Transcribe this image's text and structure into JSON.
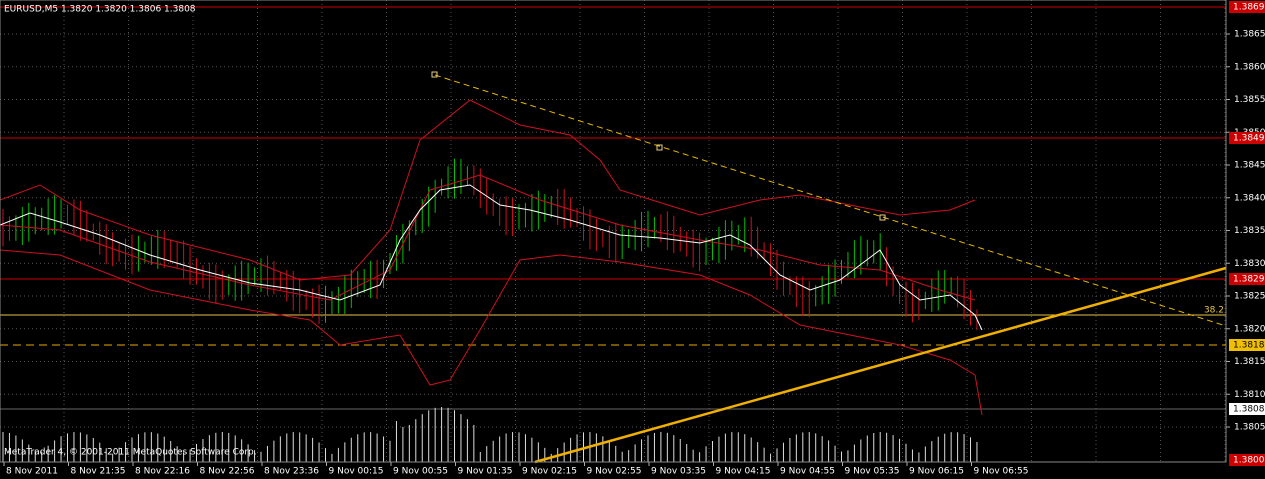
{
  "header": {
    "title": "EURUSD,M5  1.3820 1.3820 1.3806 1.3808"
  },
  "watermark": "MetaTrader 4, © 2001-2011 MetaQuotes Software Corp.",
  "price_axis": {
    "labels": [
      "1.3865",
      "1.3860",
      "1.3855",
      "1.3850",
      "1.3845",
      "1.3840",
      "1.3835",
      "1.3830",
      "1.3825",
      "1.3820",
      "1.3815",
      "1.3810",
      "1.3805"
    ]
  },
  "price_markers": [
    {
      "label": "1.3869"
    },
    {
      "label": "1.3849"
    },
    {
      "label": "1.3829"
    },
    {
      "label": "1.3818"
    },
    {
      "label": "1.3808"
    },
    {
      "label": "1.3800"
    }
  ],
  "level_label": "38.2",
  "time_axis": {
    "labels": [
      "8 Nov 2011",
      "8 Nov 21:35",
      "8 Nov 22:16",
      "8 Nov 22:56",
      "8 Nov 23:36",
      "9 Nov 00:15",
      "9 Nov 00:55",
      "9 Nov 01:35",
      "9 Nov 02:15",
      "9 Nov 02:55",
      "9 Nov 03:35",
      "9 Nov 04:15",
      "9 Nov 04:55",
      "9 Nov 05:35",
      "9 Nov 06:15",
      "9 Nov 06:55"
    ]
  }
}
